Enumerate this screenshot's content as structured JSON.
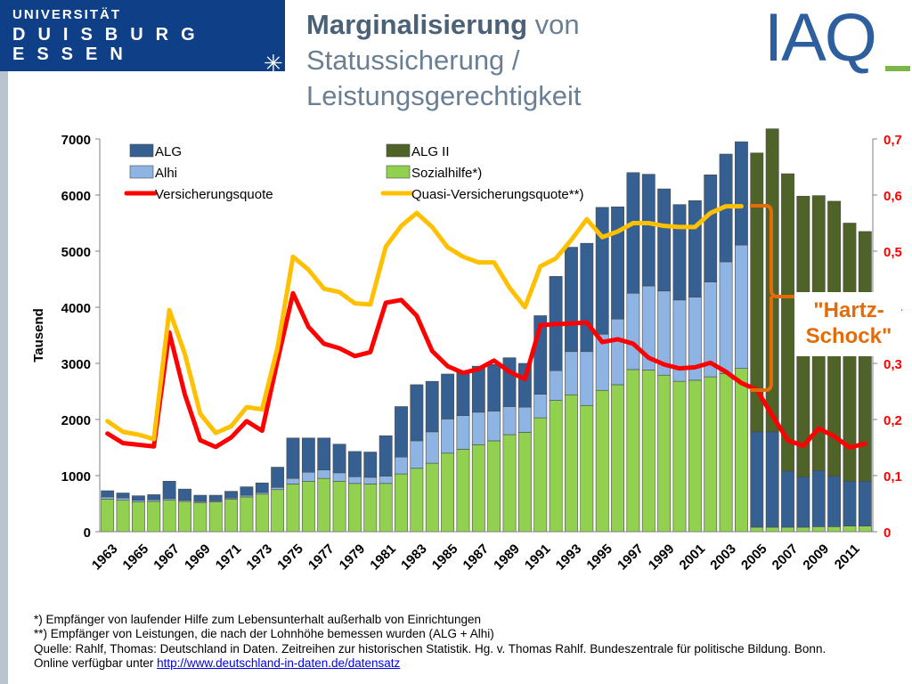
{
  "header": {
    "university_line1": "UNIVERSITÄT",
    "university_line2": "DUISBURG",
    "university_line3": "ESSEN",
    "title_bold": "Marginalisierung",
    "title_rest": " von Statussicherung / Leistungsgerechtigkeit",
    "logo_text": "IAQ",
    "colors": {
      "university_blue": "#0f3f86",
      "iaq_blue": "#2d5e9e",
      "iaq_green": "#7ab648"
    }
  },
  "annotation": {
    "line1": "\"Hartz-",
    "line2": "Schock\"",
    "color": "#e36c09"
  },
  "footnotes": {
    "note1": "*) Empfänger von laufender Hilfe zum Lebensunterhalt außerhalb von Einrichtungen",
    "note2": "**) Empfänger von  Leistungen, die nach der Lohnhöhe bemessen wurden (ALG + Alhi)",
    "source": "Quelle: Rahlf, Thomas: Deutschland in Daten. Zeitreihen zur historischen Statistik. Hg. v. Thomas Rahlf. Bundeszentrale für politische Bildung. Bonn.",
    "online_prefix": "Online verfügbar unter ",
    "link": "http://www.deutschland-in-daten.de/datensatz"
  },
  "chart_data": {
    "type": "bar",
    "stacked": true,
    "ylabel": "Tausend",
    "ylim": [
      0,
      7000
    ],
    "y_ticks": [
      "0",
      "1000",
      "2000",
      "3000",
      "4000",
      "5000",
      "6000",
      "7000"
    ],
    "y2lim": [
      0,
      0.7
    ],
    "y2_ticks": [
      "0",
      "0,1",
      "0,2",
      "0,3",
      "0,4",
      "0,5",
      "0,6",
      "0,7"
    ],
    "grid": false,
    "legend_position": "top",
    "x_tick_labels": [
      "1963",
      "1965",
      "1967",
      "1969",
      "1971",
      "1973",
      "1975",
      "1977",
      "1979",
      "1981",
      "1983",
      "1985",
      "1987",
      "1989",
      "1991",
      "1993",
      "1995",
      "1997",
      "1999",
      "2001",
      "2003",
      "2005",
      "2007",
      "2009",
      "2011"
    ],
    "categories": [
      "1963",
      "1964",
      "1965",
      "1966",
      "1967",
      "1968",
      "1969",
      "1970",
      "1971",
      "1972",
      "1973",
      "1974",
      "1975",
      "1976",
      "1977",
      "1978",
      "1979",
      "1980",
      "1981",
      "1982",
      "1983",
      "1984",
      "1985",
      "1986",
      "1987",
      "1988",
      "1989",
      "1990",
      "1991",
      "1992",
      "1993",
      "1994",
      "1995",
      "1996",
      "1997",
      "1998",
      "1999",
      "2000",
      "2001",
      "2002",
      "2003",
      "2004",
      "2005",
      "2006",
      "2007",
      "2008",
      "2009",
      "2010",
      "2011",
      "2012"
    ],
    "series": [
      {
        "name": "Sozialhilfe*)",
        "color": "#92d050",
        "kind": "bar",
        "values": [
          580,
          560,
          530,
          540,
          560,
          540,
          520,
          530,
          580,
          620,
          670,
          750,
          850,
          900,
          950,
          900,
          860,
          850,
          860,
          1030,
          1130,
          1220,
          1400,
          1470,
          1550,
          1620,
          1730,
          1770,
          2030,
          2340,
          2440,
          2250,
          2520,
          2620,
          2890,
          2880,
          2790,
          2680,
          2700,
          2760,
          2820,
          2910,
          80,
          80,
          80,
          80,
          90,
          90,
          100,
          100
        ]
      },
      {
        "name": "Alhi",
        "color": "#8db4e2",
        "kind": "bar",
        "values": [
          40,
          40,
          30,
          30,
          30,
          20,
          20,
          20,
          20,
          30,
          30,
          40,
          100,
          160,
          150,
          150,
          120,
          120,
          130,
          300,
          490,
          560,
          610,
          600,
          580,
          530,
          500,
          450,
          420,
          530,
          770,
          960,
          1000,
          1170,
          1360,
          1500,
          1500,
          1450,
          1480,
          1690,
          1990,
          2200,
          0,
          0,
          0,
          0,
          0,
          0,
          0,
          0
        ]
      },
      {
        "name": "ALG",
        "color": "#366092",
        "kind": "bar",
        "values": [
          110,
          90,
          80,
          90,
          310,
          200,
          110,
          100,
          120,
          150,
          170,
          360,
          720,
          610,
          570,
          510,
          450,
          450,
          720,
          900,
          1000,
          900,
          800,
          800,
          820,
          830,
          870,
          780,
          1400,
          1680,
          1860,
          1930,
          2260,
          2000,
          2150,
          1990,
          1820,
          1700,
          1720,
          1910,
          1920,
          1840,
          1700,
          1700,
          1000,
          900,
          1000,
          900,
          800,
          800
        ]
      },
      {
        "name": "ALG II",
        "color": "#4f6228",
        "kind": "bar",
        "values": [
          0,
          0,
          0,
          0,
          0,
          0,
          0,
          0,
          0,
          0,
          0,
          0,
          0,
          0,
          0,
          0,
          0,
          0,
          0,
          0,
          0,
          0,
          0,
          0,
          0,
          0,
          0,
          0,
          0,
          0,
          0,
          0,
          0,
          0,
          0,
          0,
          0,
          0,
          0,
          0,
          0,
          0,
          4970,
          5400,
          5300,
          5000,
          4900,
          4900,
          4600,
          4450
        ]
      },
      {
        "name": "Versicherungsquote",
        "color": "#ff0000",
        "kind": "line",
        "axis": "right",
        "values": [
          0.175,
          0.158,
          0.155,
          0.152,
          0.355,
          0.245,
          0.163,
          0.151,
          0.168,
          0.197,
          0.18,
          0.305,
          0.425,
          0.365,
          0.335,
          0.327,
          0.313,
          0.32,
          0.408,
          0.413,
          0.385,
          0.322,
          0.295,
          0.283,
          0.29,
          0.305,
          0.285,
          0.272,
          0.368,
          0.37,
          0.371,
          0.373,
          0.338,
          0.343,
          0.335,
          0.31,
          0.298,
          0.291,
          0.293,
          0.301,
          0.285,
          0.265,
          0.253,
          0.207,
          0.163,
          0.153,
          0.184,
          0.17,
          0.15,
          0.157
        ]
      },
      {
        "name": "Quasi-Versicherungsquote**)",
        "color": "#ffc000",
        "kind": "line",
        "axis": "right",
        "values": [
          0.197,
          0.178,
          0.173,
          0.165,
          0.395,
          0.317,
          0.21,
          0.176,
          0.188,
          0.222,
          0.218,
          0.328,
          0.49,
          0.467,
          0.433,
          0.427,
          0.407,
          0.405,
          0.508,
          0.545,
          0.568,
          0.543,
          0.507,
          0.49,
          0.48,
          0.48,
          0.435,
          0.4,
          0.473,
          0.487,
          0.52,
          0.557,
          0.525,
          0.535,
          0.55,
          0.55,
          0.545,
          0.543,
          0.543,
          0.568,
          0.58,
          0.58,
          null,
          null,
          null,
          null,
          null,
          null,
          null,
          null
        ]
      }
    ]
  }
}
